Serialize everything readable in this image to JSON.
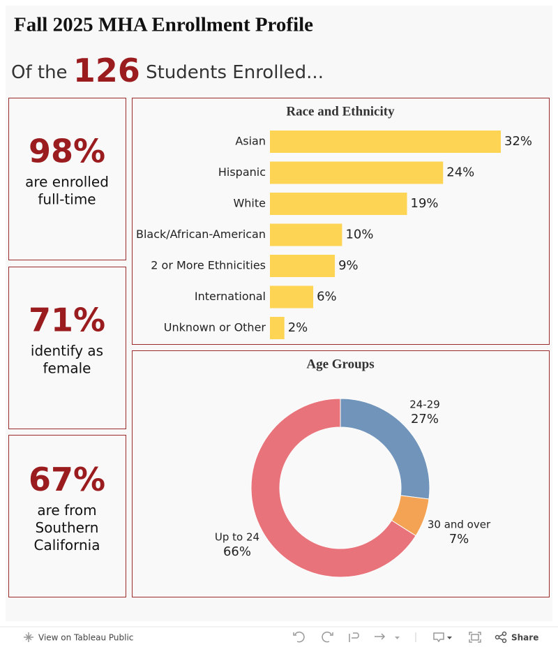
{
  "header": {
    "title": "Fall 2025 MHA Enrollment Profile",
    "subtitle_before": "Of the",
    "subtitle_number": "126",
    "subtitle_after": "Students Enrolled..."
  },
  "kpis": [
    {
      "value": "98%",
      "lines": [
        "are enrolled",
        "full-time"
      ]
    },
    {
      "value": "71%",
      "lines": [
        "identify as",
        "female"
      ]
    },
    {
      "value": "67%",
      "lines": [
        "are from",
        "Southern",
        "California"
      ]
    }
  ],
  "chart_data": [
    {
      "type": "bar",
      "title": "Race and Ethnicity",
      "orientation": "horizontal",
      "color": "#fdd454",
      "categories": [
        "Asian",
        "Hispanic",
        "White",
        "Black/African-American",
        "2 or More Ethnicities",
        "International",
        "Unknown or Other"
      ],
      "values": [
        32,
        24,
        19,
        10,
        9,
        6,
        2
      ],
      "value_labels": [
        "32%",
        "24%",
        "19%",
        "10%",
        "9%",
        "6%",
        "2%"
      ]
    },
    {
      "type": "donut",
      "title": "Age Groups",
      "categories": [
        "24-29",
        "30 and over",
        "Up to 24"
      ],
      "values": [
        27,
        7,
        66
      ],
      "value_labels": [
        "27%",
        "7%",
        "66%"
      ],
      "colors": [
        "#7094ba",
        "#f3a353",
        "#e8737a"
      ]
    }
  ],
  "toolbar": {
    "view": "View on Tableau Public",
    "share": "Share"
  }
}
